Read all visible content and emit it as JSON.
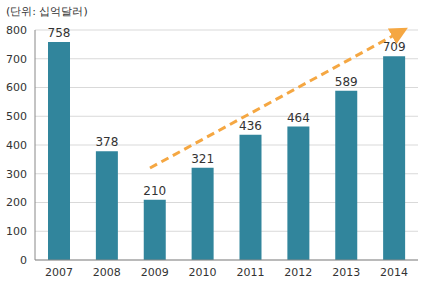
{
  "chart_data": {
    "type": "bar",
    "title": "(단위: 십억달러)",
    "categories": [
      "2007",
      "2008",
      "2009",
      "2010",
      "2011",
      "2012",
      "2013",
      "2014"
    ],
    "values": [
      758,
      378,
      210,
      321,
      436,
      464,
      589,
      709
    ],
    "color": "#31859c",
    "ylim": [
      0,
      800
    ],
    "yticks": [
      0,
      100,
      200,
      300,
      400,
      500,
      600,
      700,
      800
    ],
    "grid": true,
    "data_labels": true
  }
}
